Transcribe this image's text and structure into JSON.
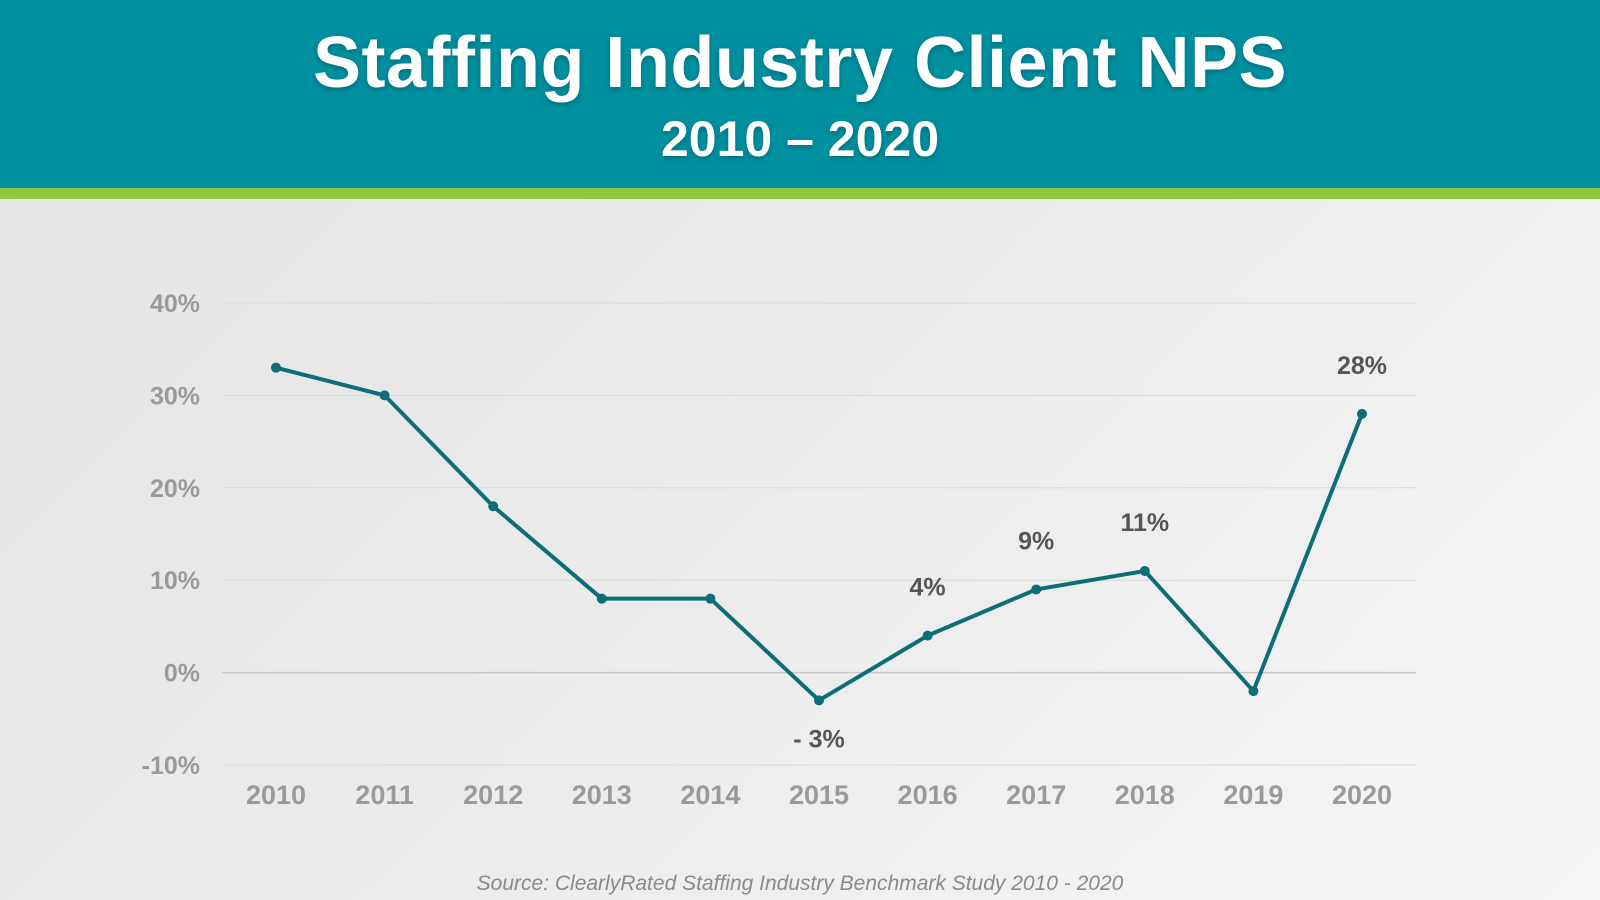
{
  "header": {
    "title": "Staffing Industry Client NPS",
    "subtitle": "2010 – 2020"
  },
  "source": "Source: ClearlyRated Staffing Industry Benchmark Study 2010 - 2020",
  "colors": {
    "header_bg": "#0090a0",
    "header_stripe": "#8dc63f",
    "line": "#0b6e78",
    "axis_text": "#9a9a9a",
    "label_text": "#555555"
  },
  "chart_data": {
    "type": "line",
    "categories": [
      "2010",
      "2011",
      "2012",
      "2013",
      "2014",
      "2015",
      "2016",
      "2017",
      "2018",
      "2019",
      "2020"
    ],
    "values": [
      33,
      30,
      18,
      8,
      8,
      -3,
      4,
      9,
      11,
      -2,
      28
    ],
    "ylim": [
      -10,
      40
    ],
    "yticks": [
      40,
      30,
      20,
      10,
      0,
      -10
    ],
    "ytick_labels": [
      "40%",
      "30%",
      "20%",
      "10%",
      "0%",
      "-10%"
    ],
    "data_labels": [
      {
        "category": "2015",
        "text": "- 3%",
        "position": "below"
      },
      {
        "category": "2016",
        "text": "4%",
        "position": "above"
      },
      {
        "category": "2017",
        "text": "9%",
        "position": "above"
      },
      {
        "category": "2018",
        "text": "11%",
        "position": "above"
      },
      {
        "category": "2020",
        "text": "28%",
        "position": "above"
      }
    ],
    "grid": true,
    "legend": "none"
  }
}
